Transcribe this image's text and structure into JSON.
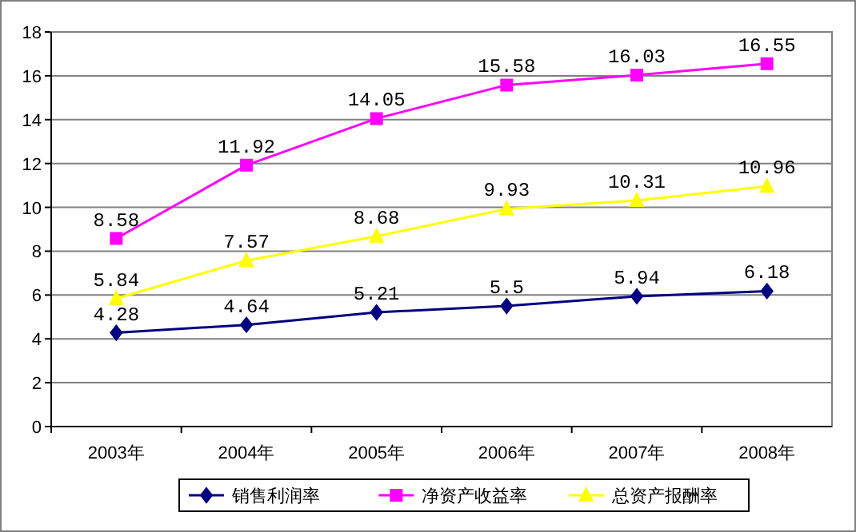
{
  "chart_data": {
    "type": "line",
    "categories": [
      "2003年",
      "2004年",
      "2005年",
      "2006年",
      "2007年",
      "2008年"
    ],
    "series": [
      {
        "name": "销售利润率",
        "color": "#000080",
        "marker": "diamond",
        "values": [
          4.28,
          4.64,
          5.21,
          5.5,
          5.94,
          6.18
        ]
      },
      {
        "name": "净资产收益率",
        "color": "#ff00ff",
        "marker": "square",
        "values": [
          8.58,
          11.92,
          14.05,
          15.58,
          16.03,
          16.55
        ]
      },
      {
        "name": "总资产报酬率",
        "color": "#ffff00",
        "marker": "triangle",
        "values": [
          5.84,
          7.57,
          8.68,
          9.93,
          10.31,
          10.96
        ]
      }
    ],
    "ylim": [
      0,
      18
    ],
    "yticks": [
      0,
      2,
      4,
      6,
      8,
      10,
      12,
      14,
      16,
      18
    ],
    "grid": "y",
    "legend": "bottom",
    "data_labels": true
  }
}
